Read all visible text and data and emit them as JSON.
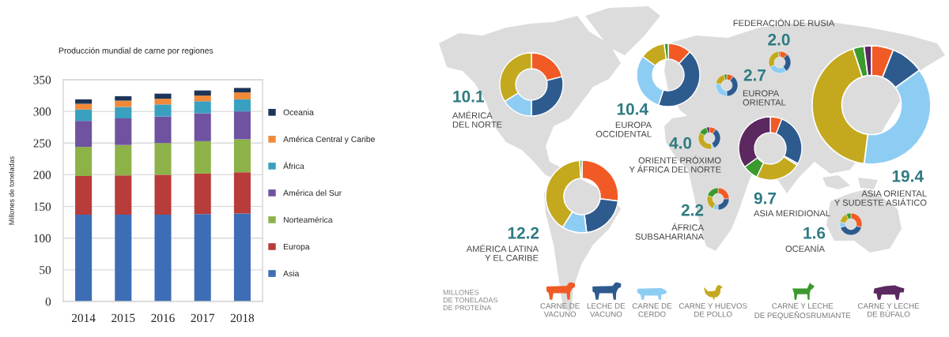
{
  "chart_data": [
    {
      "type": "bar",
      "title": "Producción mundial de carne por regiones",
      "ylabel": "Millones de toneladas",
      "categories": [
        "2014",
        "2015",
        "2016",
        "2017",
        "2018"
      ],
      "stacked": true,
      "series": [
        {
          "name": "Asia",
          "color": "#3d6db5",
          "values": [
            137,
            137,
            137,
            138,
            139
          ]
        },
        {
          "name": "Europa",
          "color": "#b83c3a",
          "values": [
            61,
            62,
            63,
            64,
            65
          ]
        },
        {
          "name": "Norteamérica",
          "color": "#8cb248",
          "values": [
            46,
            48,
            50,
            51,
            52
          ]
        },
        {
          "name": "América del Sur",
          "color": "#6f53a0",
          "values": [
            41,
            42,
            42,
            44,
            44
          ]
        },
        {
          "name": "África",
          "color": "#3aa0c0",
          "values": [
            18,
            18,
            19,
            19,
            19
          ]
        },
        {
          "name": "América Central y Caribe",
          "color": "#f08a3a",
          "values": [
            9,
            10,
            9,
            9,
            11
          ]
        },
        {
          "name": "Oceania",
          "color": "#1c3558",
          "values": [
            7,
            7,
            8,
            8,
            7
          ]
        }
      ],
      "ylim": [
        0,
        350
      ],
      "yticks": [
        0,
        50,
        100,
        150,
        200,
        250,
        300,
        350
      ],
      "grid": "y",
      "legend": "right"
    },
    {
      "type": "donut",
      "title": "AMÉRICA\nDEL NORTE",
      "annotations": [
        "10.1"
      ],
      "categories": [
        null,
        null,
        null,
        null,
        null,
        null
      ],
      "values": [
        21,
        29,
        16,
        34,
        null,
        null
      ],
      "colors": [
        "#f15a24",
        "#2e5b8e",
        "#8ecdf3",
        "#c4a91f",
        "#3a9a2e",
        "#5b2860"
      ]
    },
    {
      "type": "donut",
      "title": "EUROPA\nOCCIDENTAL",
      "annotations": [
        "10.4"
      ],
      "categories": [
        null,
        null,
        null,
        null,
        null,
        null
      ],
      "values": [
        12,
        43,
        30,
        13,
        2,
        null
      ],
      "colors": [
        "#f15a24",
        "#2e5b8e",
        "#8ecdf3",
        "#c4a91f",
        "#3a9a2e",
        "#5b2860"
      ]
    },
    {
      "type": "donut",
      "title": "AMÉRICA LATINA\nY EL CARIBE",
      "annotations": [
        "12.2"
      ],
      "categories": [
        "CARNE DE\nVACUNO",
        "LECHE DE\nVACUNO",
        "CARNE DE\nCERDO",
        "CARNE Y HUEVOS\nDE POLLO",
        "CARNE Y LECHE\nDE PEQUEÑOSRUMIANTE",
        "CARNE Y LECHE\nDE BÚFALO"
      ],
      "values": [
        27,
        21,
        11,
        40,
        1,
        null
      ],
      "colors": [
        "#f15a24",
        "#2e5b8e",
        "#8ecdf3",
        "#c4a91f",
        "#3a9a2e",
        "#5b2860"
      ],
      "legend": "bottom",
      "legend_title": "MILLONES\nDE TONELADAS\nDE PROTEÍNA"
    },
    {
      "type": "donut",
      "title": "EUROPA\nORIENTAL",
      "annotations": [
        "2.7"
      ],
      "categories": [
        null,
        null,
        null,
        null,
        null,
        null
      ],
      "values": [
        10,
        40,
        28,
        18,
        4,
        null
      ],
      "colors": [
        "#f15a24",
        "#2e5b8e",
        "#8ecdf3",
        "#c4a91f",
        "#3a9a2e",
        "#5b2860"
      ]
    },
    {
      "type": "donut",
      "title": "FEDERACIÓN DE RUSIA",
      "annotations": [
        "2.0"
      ],
      "categories": [
        null,
        null,
        null,
        null,
        null,
        null
      ],
      "values": [
        12,
        28,
        28,
        30,
        2,
        null
      ],
      "colors": [
        "#f15a24",
        "#2e5b8e",
        "#8ecdf3",
        "#c4a91f",
        "#3a9a2e",
        "#5b2860"
      ]
    },
    {
      "type": "donut",
      "title": "ORIENTE PRÓXIMO\nY ÁFRICA DEL NORTE",
      "annotations": [
        "4.0"
      ],
      "categories": [
        null,
        null,
        null,
        null,
        null,
        null
      ],
      "values": [
        10,
        33,
        3,
        37,
        13,
        4
      ],
      "colors": [
        "#f15a24",
        "#2e5b8e",
        "#8ecdf3",
        "#c4a91f",
        "#3a9a2e",
        "#5b2860"
      ]
    },
    {
      "type": "donut",
      "title": "ÁFRICA\nSUBSAHARIANA",
      "annotations": [
        "2.2"
      ],
      "categories": [
        null,
        null,
        null,
        null,
        null,
        null
      ],
      "values": [
        25,
        25,
        8,
        22,
        20,
        null
      ],
      "colors": [
        "#f15a24",
        "#2e5b8e",
        "#8ecdf3",
        "#c4a91f",
        "#3a9a2e",
        "#5b2860"
      ]
    },
    {
      "type": "donut",
      "title": "ASIA MERIDIONAL",
      "annotations": [
        "9.7"
      ],
      "categories": [
        null,
        null,
        null,
        null,
        null,
        null
      ],
      "values": [
        6,
        27,
        1,
        23,
        8,
        35
      ],
      "colors": [
        "#f15a24",
        "#2e5b8e",
        "#8ecdf3",
        "#c4a91f",
        "#3a9a2e",
        "#5b2860"
      ]
    },
    {
      "type": "donut",
      "title": "ASIA ORIENTAL\nY SUDESTE ASIÁTICO",
      "annotations": [
        "19.4"
      ],
      "categories": [
        null,
        null,
        null,
        null,
        null,
        null
      ],
      "values": [
        6,
        9,
        37,
        43,
        3,
        2
      ],
      "colors": [
        "#f15a24",
        "#2e5b8e",
        "#8ecdf3",
        "#c4a91f",
        "#3a9a2e",
        "#5b2860"
      ]
    },
    {
      "type": "donut",
      "title": "OCEANÍA",
      "annotations": [
        "1.6"
      ],
      "categories": [
        null,
        null,
        null,
        null,
        null,
        null
      ],
      "values": [
        30,
        40,
        8,
        15,
        7,
        null
      ],
      "colors": [
        "#f15a24",
        "#2e5b8e",
        "#8ecdf3",
        "#c4a91f",
        "#3a9a2e",
        "#5b2860"
      ]
    }
  ]
}
